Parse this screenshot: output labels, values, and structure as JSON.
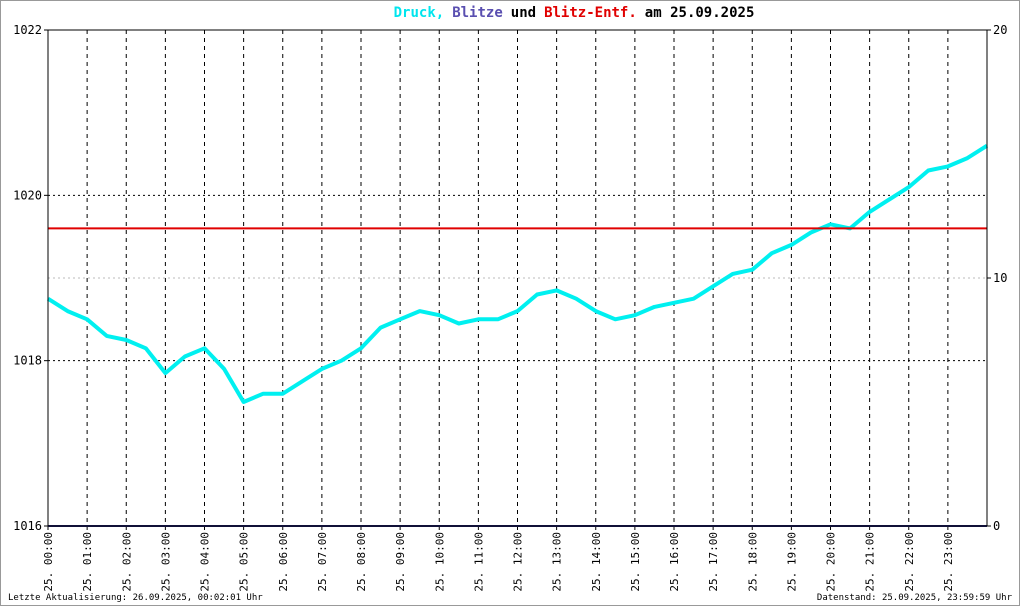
{
  "chart_data": {
    "type": "line",
    "title_parts": [
      "Druck,",
      "Blitze",
      "und",
      "Blitz-Entf.",
      "am 25.09.2025"
    ],
    "title_colors": [
      "#00e5ee",
      "#5a4fb0",
      "#000000",
      "#e00000",
      "#000000"
    ],
    "footer_left": "Letzte Aktualisierung: 26.09.2025, 00:02:01 Uhr",
    "footer_right": "Datenstand: 25.09.2025, 23:59:59 Uhr",
    "xlim": [
      0,
      24
    ],
    "xticks": [
      {
        "value": 0,
        "label": "25. 00:00"
      },
      {
        "value": 1,
        "label": "25. 01:00"
      },
      {
        "value": 2,
        "label": "25. 02:00"
      },
      {
        "value": 3,
        "label": "25. 03:00"
      },
      {
        "value": 4,
        "label": "25. 04:00"
      },
      {
        "value": 5,
        "label": "25. 05:00"
      },
      {
        "value": 6,
        "label": "25. 06:00"
      },
      {
        "value": 7,
        "label": "25. 07:00"
      },
      {
        "value": 8,
        "label": "25. 08:00"
      },
      {
        "value": 9,
        "label": "25. 09:00"
      },
      {
        "value": 10,
        "label": "25. 10:00"
      },
      {
        "value": 11,
        "label": "25. 11:00"
      },
      {
        "value": 12,
        "label": "25. 12:00"
      },
      {
        "value": 13,
        "label": "25. 13:00"
      },
      {
        "value": 14,
        "label": "25. 14:00"
      },
      {
        "value": 15,
        "label": "25. 15:00"
      },
      {
        "value": 16,
        "label": "25. 16:00"
      },
      {
        "value": 17,
        "label": "25. 17:00"
      },
      {
        "value": 18,
        "label": "25. 18:00"
      },
      {
        "value": 19,
        "label": "25. 19:00"
      },
      {
        "value": 20,
        "label": "25. 20:00"
      },
      {
        "value": 21,
        "label": "25. 21:00"
      },
      {
        "value": 22,
        "label": "25. 22:00"
      },
      {
        "value": 23,
        "label": "25. 23:00"
      }
    ],
    "ylim": [
      1016,
      1022
    ],
    "yticks": [
      1016,
      1018,
      1020,
      1022
    ],
    "y2lim": [
      0,
      20
    ],
    "y2ticks": [
      0,
      10,
      20
    ],
    "grid": true,
    "series": [
      {
        "color": "#00f0f0",
        "axis": "y",
        "x": [
          0,
          0.5,
          1,
          1.5,
          2,
          2.5,
          3,
          3.5,
          4,
          4.5,
          5,
          5.5,
          6,
          6.5,
          7,
          7.5,
          8,
          8.5,
          9,
          9.5,
          10,
          10.5,
          11,
          11.5,
          12,
          12.5,
          13,
          13.5,
          14,
          14.5,
          15,
          15.5,
          16,
          16.5,
          17,
          17.5,
          18,
          18.5,
          19,
          19.5,
          20,
          20.5,
          21,
          21.5,
          22,
          22.5,
          23,
          23.5,
          24
        ],
        "values": [
          1018.75,
          1018.6,
          1018.5,
          1018.3,
          1018.25,
          1018.15,
          1017.85,
          1018.05,
          1018.15,
          1017.9,
          1017.5,
          1017.6,
          1017.6,
          1017.75,
          1017.9,
          1018.0,
          1018.15,
          1018.4,
          1018.5,
          1018.6,
          1018.55,
          1018.45,
          1018.5,
          1018.5,
          1018.6,
          1018.8,
          1018.85,
          1018.75,
          1018.6,
          1018.5,
          1018.55,
          1018.65,
          1018.7,
          1018.75,
          1018.9,
          1019.05,
          1019.1,
          1019.3,
          1019.4,
          1019.55,
          1019.65,
          1019.6,
          1019.8,
          1019.95,
          1020.1,
          1020.3,
          1020.35,
          1020.45,
          1020.6
        ]
      },
      {
        "color": "#20206e",
        "axis": "y2",
        "x": [
          0,
          24
        ],
        "values": [
          0,
          0
        ]
      },
      {
        "color": "#e00000",
        "axis": "y2",
        "x": [
          0,
          24
        ],
        "values": [
          12,
          12
        ]
      }
    ]
  }
}
